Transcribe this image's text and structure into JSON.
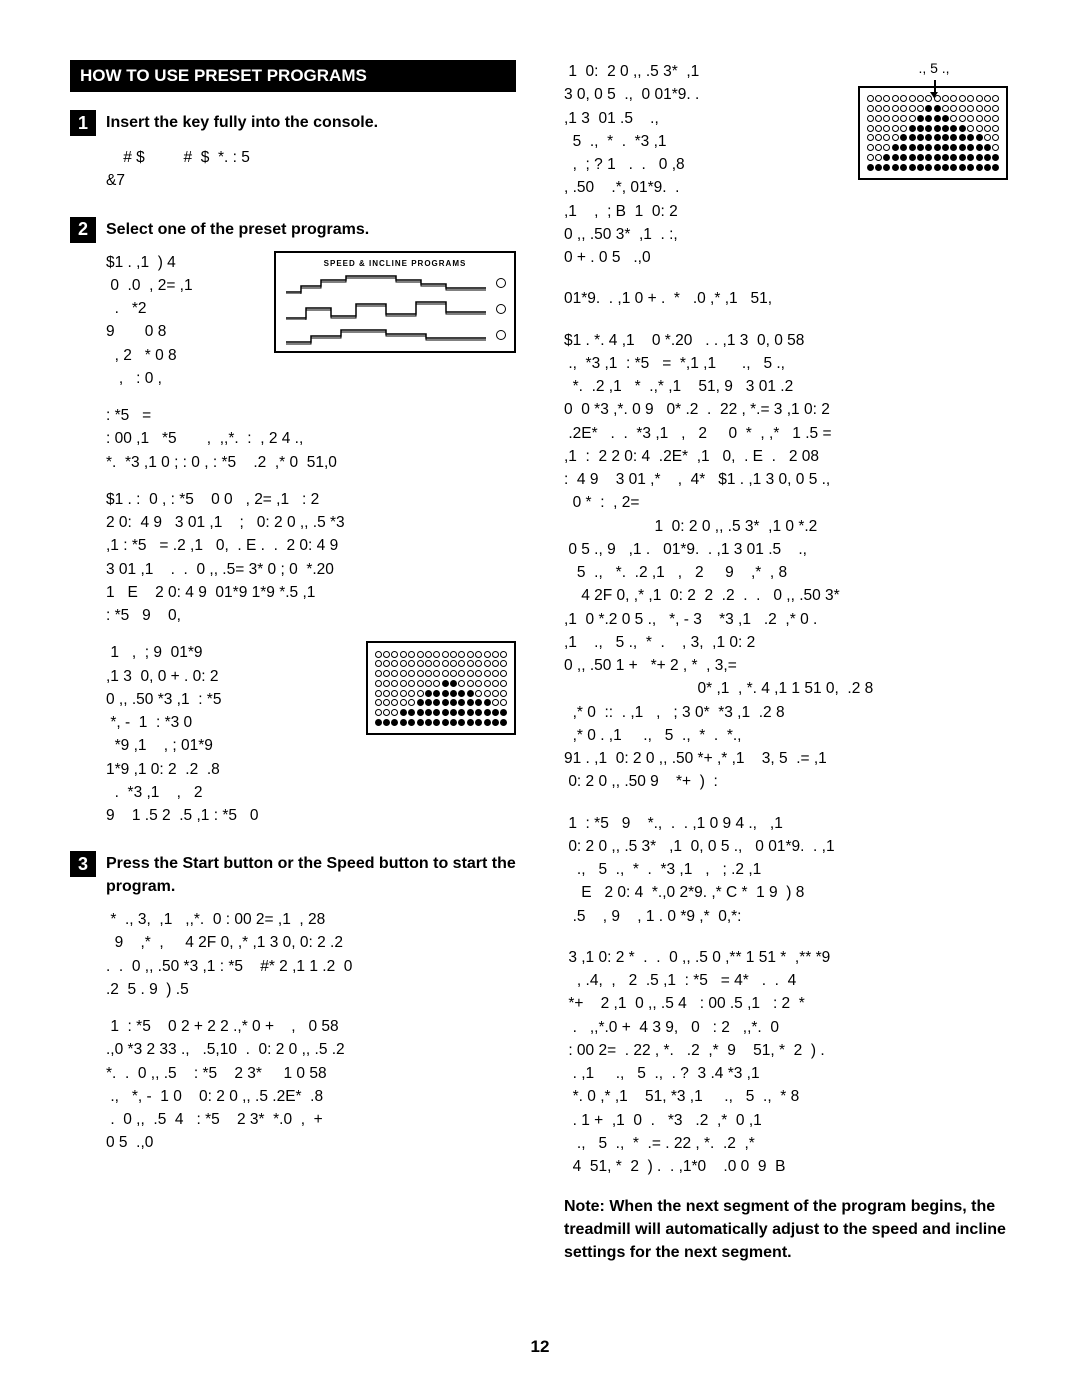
{
  "header": "HOW TO USE PRESET PROGRAMS",
  "pageNumber": "12",
  "steps": [
    {
      "num": "1",
      "title": "Insert the key fully into the console.",
      "body": "    # $         #  $  *. : 5\n&7"
    },
    {
      "num": "2",
      "title": "Select one of the preset programs.",
      "introText": "$1 . ,1  ) 4\n 0  .0  , 2= ,1\n  .   *2\n9       0 8\n  , 2   * 0 8\n   ,   : 0 ,",
      "programsLabel": "SPEED & INCLINE PROGRAMS",
      "para2": ": *5   =\n: 00 ,1   *5       ,  ,,*.  :  , 2 4 .,\n*.  *3 ,1 0 ; : 0 , : *5    .2  ,* 0  51,0",
      "para3": "$1 . :  0 , : *5    0 0   , 2= ,1   : 2\n2 0:  4 9   3 01 ,1    ;   0: 2 0 ,, .5 *3\n,1 : *5   = .2 ,1   0,  . E .  .  2 0: 4 9\n3 01 ,1    .  .  0 ,, .5= 3* 0 ; 0  *.20\n1   E    2 0: 4 9  01*9 1*9 *.5 ,1\n: *5   9    0,",
      "matrixText": " 1   ,  ; 9  01*9\n,1 3  0, 0 + . 0: 2\n0 ,, .50 *3 ,1  : *5\n *, -  1  : *3 0\n  *9 ,1    , ; 01*9\n1*9 ,1 0: 2  .2  .8\n  .  *3 ,1    ,   2\n9    1 .5 2  .5 ,1 : *5   0"
    },
    {
      "num": "3",
      "title": "Press the Start button or the Speed     button to start the program.",
      "para1": " *  ., 3,  ,1   ,,*.  0 : 00 2= ,1  , 28\n  9    ,*  ,     4 2F 0, ,* ,1 3 0, 0: 2 .2\n.  .  0 ,, .50 *3 ,1 : *5    #* 2 ,1 1 .2  0\n.2  5 . 9  ) .5",
      "para2": " 1  : *5    0 2 + 2 2 .,* 0 +    ,   0 58\n.,0 *3 2 33 .,   .5,10  .  0: 2 0 ,, .5 .2\n*.  .  0 ,, .5    : *5    2 3*     1 0 58\n .,   *, -  1 0    0: 2 0 ,, .5 .2E*  .8\n .  0 ,,  .5  4   : *5    2 3*  *.0  ,  +\n0 5  .,0"
    }
  ],
  "col2": {
    "cursorLabel": ".,   5  .,",
    "figText": " 1  0:  2 0 ,, .5 3*  ,1\n3 0, 0 5  .,  0 01*9. .\n,1 3  01 .5    .,\n  5  .,  *  .  *3 ,1\n  ,  ; ? 1   .  .   0 ,8\n, .50    .*, 01*9.  .\n,1    ,  ; B  1  0: 2\n0 ,, .50 3*  ,1  . :,\n0 + . 0 5   .,0",
    "para1": "01*9.  . ,1 0 + .  *   .0 ,* ,1   51,",
    "para2": "$1 . *. 4 ,1    0 *.20   . . ,1 3  0, 0 58\n .,  *3 ,1  : *5   =  *,1 ,1      .,   5 .,\n  *.  .2 ,1   *  .,* ,1    51, 9   3 01 .2\n0  0 *3 ,*. 0 9   0* .2  .  22 , *.= 3 ,1 0: 2\n .2E*   .  .  *3 ,1   ,   2     0  *  , ,*   1 .5 =\n,1  :  2 2 0: 4  .2E*  ,1   0,  . E  .   2 08\n:  4 9    3 01 ,*    ,  4*   $1 . ,1 3 0, 0 5 .,\n  0 *  :  , 2=\n                     1  0: 2 0 ,, .5 3*  ,1 0 *.2\n 0 5 ., 9   ,1 .   01*9.  . ,1 3 01 .5    .,\n   5  .,   *.  .2 ,1   ,   2     9    ,*  , 8\n    4 2F 0, ,* ,1  0: 2  2  .2  .  .   0 ,, .50 3*\n,1  0 *.2 0 5 .,   *, - 3    *3 ,1   .2  ,* 0 .\n,1    .,   5 .,  *  .    , 3,  ,1 0: 2\n0 ,, .50 1 +   *+ 2 , *  , 3,=\n                               0* ,1  , *. 4 ,1 1 51 0,  .2 8\n  ,* 0  ::  . ,1   ,   ; 3 0*  *3 ,1  .2 8\n  ,* 0 . ,1     .,   5  .,  *  .  *.,\n91 . ,1  0: 2 0 ,, .50 *+ ,* ,1    3, 5  .= ,1\n 0: 2 0 ,, .50 9    *+  )  :",
    "para3": " 1  : *5   9    *.,  .  . ,1 0 9 4 .,   ,1\n 0: 2 0 ,, .5 3*   ,1  0, 0 5 .,   0 01*9.  . ,1\n   .,   5  .,  *  .  *3 ,1   ,   ; .2 ,1\n    E   2 0: 4  *.,0 2*9. ,* C *  1 9  ) 8\n  .5    , 9    , 1 . 0 *9 ,*  0,*:",
    "para4": " 3 ,1 0: 2 *  .  .  0 ,, .5 0 ,** 1 51 *  ,** *9\n   , .4,  ,   2  .5 ,1  : *5   = 4*   .  .  4\n *+    2 ,1  0 ,, .5 4   : 00 .5 ,1   : 2  *\n  .   ,,*.0 +  4 3 9,   0   : 2   ,,*.  0\n : 00 2=  . 22 , *.   .2  ,*  9    51, *  2  ) .\n  . ,1     .,   5  .,  . ?  3 .4 *3 ,1\n  *. 0 ,* ,1    51, *3 ,1     .,   5  .,  * 8\n  . 1 +  ,1  0  .   *3   .2  ,*  0 ,1\n   .,   5  .,  *  .= . 22 , *.  .2  ,*\n  4  51, *  2  ) .  . ,1*0    .0 0  9  B",
    "note": "Note: When the next segment of the program begins, the treadmill will automatically adjust to the speed and incline settings for the next segment."
  },
  "matrix1": [
    "0000000000000000",
    "0000000000000000",
    "0000000000000000",
    "0000000011000000",
    "0000001111110000",
    "0000011111111100",
    "0001111111111111",
    "1111111111111111"
  ],
  "matrix2": [
    "0000000000000000",
    "0000000110000000",
    "0000001111000000",
    "0000011111110000",
    "0000111111111100",
    "0001111111111110",
    "0011111111111111",
    "1111111111111111"
  ]
}
